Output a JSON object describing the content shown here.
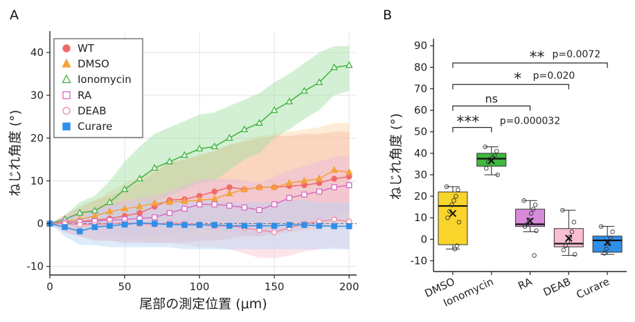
{
  "chart_data": [
    {
      "panel_label": "A",
      "type": "line",
      "xlabel": "尾部の測定位置 (μm)",
      "ylabel": "ねじれ角度 (°)",
      "xlim": [
        0,
        205
      ],
      "ylim": [
        -12,
        45
      ],
      "xticks": [
        0,
        50,
        100,
        150,
        200
      ],
      "yticks": [
        -10,
        0,
        10,
        20,
        30,
        40
      ],
      "grid": true,
      "zero_dashed_line": true,
      "legend_position": "top-left",
      "series": [
        {
          "name": "WT",
          "color": "#f06a6a",
          "marker": "circle-filled",
          "x": [
            0,
            10,
            20,
            30,
            40,
            50,
            60,
            70,
            80,
            90,
            100,
            110,
            120,
            130,
            140,
            150,
            160,
            170,
            180,
            190,
            200
          ],
          "y": [
            0,
            0.2,
            0.5,
            0.8,
            1.2,
            1.8,
            2.5,
            4.0,
            5.5,
            5.7,
            6.5,
            7.5,
            8.5,
            8.0,
            8.5,
            8.5,
            8.8,
            9.0,
            9.5,
            10.5,
            11.0
          ],
          "band_lower": [
            0,
            -2,
            -3,
            -4,
            -4,
            -4.5,
            -4.5,
            -4.5,
            -4.5,
            -4.5,
            -4,
            -4,
            -3.5,
            -3,
            -3,
            -2.5,
            -2,
            -1.5,
            -1,
            0,
            0.5
          ],
          "band_upper": [
            0,
            2,
            4,
            5.5,
            6.5,
            8,
            9.5,
            12,
            14.5,
            15,
            16,
            17,
            18.5,
            19,
            20,
            20.5,
            20.5,
            21,
            21,
            21.5,
            21.5
          ],
          "band_color": "#f4a3a3"
        },
        {
          "name": "DMSO",
          "color": "#f4a23a",
          "marker": "triangle-filled",
          "x": [
            0,
            10,
            20,
            30,
            40,
            50,
            60,
            70,
            80,
            90,
            100,
            110,
            120,
            130,
            140,
            150,
            160,
            170,
            180,
            190,
            200
          ],
          "y": [
            0,
            0.5,
            1.0,
            1.8,
            2.8,
            3.5,
            4.0,
            4.8,
            5.0,
            5.2,
            5.5,
            5.8,
            7.0,
            8.0,
            8.5,
            8.5,
            9.5,
            10.0,
            10.5,
            12.5,
            12.0
          ],
          "band_lower": [
            0,
            -1,
            -1.5,
            -2,
            -2.5,
            -3,
            -3.5,
            -3.5,
            -3.5,
            -3,
            -3,
            -2.5,
            -2,
            -2,
            -1.5,
            -1.5,
            -1,
            -1,
            -0.5,
            0,
            0
          ],
          "band_upper": [
            0,
            2,
            3.5,
            5.5,
            7.5,
            9.5,
            11,
            12.5,
            14,
            15,
            16,
            17,
            18.5,
            19.5,
            20.5,
            21,
            21.5,
            22,
            22.5,
            23.5,
            23.5
          ],
          "band_color": "#fbd5a3"
        },
        {
          "name": "Ionomycin",
          "color": "#45b545",
          "marker": "triangle-open",
          "x": [
            0,
            10,
            20,
            30,
            40,
            50,
            60,
            70,
            80,
            90,
            100,
            110,
            120,
            130,
            140,
            150,
            160,
            170,
            180,
            190,
            200
          ],
          "y": [
            0,
            1.0,
            2.5,
            3.0,
            5.0,
            8.0,
            10.5,
            13.0,
            14.5,
            16.0,
            17.5,
            18.0,
            20.0,
            22.0,
            23.5,
            26.5,
            28.5,
            31.0,
            33.0,
            36.5,
            37.0
          ],
          "band_lower": [
            0,
            -0.5,
            -0.5,
            -0.5,
            0,
            1.5,
            3,
            5,
            6.5,
            8,
            9.5,
            10,
            12.5,
            15,
            16.5,
            20,
            22,
            24.5,
            26.5,
            30,
            31
          ],
          "band_upper": [
            0,
            2,
            5,
            6.5,
            10,
            14.5,
            18,
            21,
            22.5,
            24,
            25.5,
            26,
            27.5,
            29,
            30.5,
            33,
            35,
            37.5,
            40,
            41.5,
            41.5
          ],
          "band_color": "#9fdd9f"
        },
        {
          "name": "RA",
          "color": "#d86ec4",
          "marker": "square-open",
          "x": [
            0,
            10,
            20,
            30,
            40,
            50,
            60,
            70,
            80,
            90,
            100,
            110,
            120,
            130,
            140,
            150,
            160,
            170,
            180,
            190,
            200
          ],
          "y": [
            0,
            0.3,
            0.4,
            0.6,
            0.8,
            1.0,
            1.2,
            1.5,
            2.5,
            3.5,
            4.5,
            4.5,
            4.2,
            3.8,
            3.2,
            4.5,
            6.0,
            6.8,
            7.5,
            8.5,
            9.0
          ],
          "band_lower": [
            0,
            -1,
            -1.5,
            -2,
            -2.5,
            -3,
            -3,
            -3,
            -2.5,
            -2,
            -1.5,
            -1.5,
            -2,
            -2.5,
            -3,
            -2,
            -1,
            0,
            1,
            2,
            2.5
          ],
          "band_upper": [
            0,
            1.5,
            2.5,
            3.5,
            4.5,
            5.5,
            6,
            6.5,
            7.5,
            9,
            10.5,
            10.5,
            10.5,
            10,
            9.5,
            11,
            12.5,
            13.5,
            14.5,
            15.5,
            16
          ],
          "band_color": "#eab8e1"
        },
        {
          "name": "DEAB",
          "color": "#f48aa8",
          "marker": "circle-open",
          "x": [
            0,
            10,
            20,
            30,
            40,
            50,
            60,
            70,
            80,
            90,
            100,
            110,
            120,
            130,
            140,
            150,
            160,
            170,
            180,
            190,
            200
          ],
          "y": [
            0,
            0,
            -0.2,
            -0.3,
            0,
            0.2,
            0,
            -0.2,
            0.2,
            0,
            -0.2,
            -0.5,
            -0.5,
            -1.0,
            -1.5,
            -2.0,
            -1.0,
            0,
            0.5,
            1.0,
            0.5
          ],
          "band_lower": [
            0,
            -2,
            -3,
            -3.5,
            -4,
            -4,
            -4,
            -4.5,
            -4.5,
            -5,
            -5.5,
            -5.5,
            -6,
            -7,
            -8,
            -8,
            -7.5,
            -6.5,
            -6,
            -5.5,
            -6
          ],
          "band_upper": [
            0,
            2,
            3,
            3.5,
            4,
            4.5,
            4.5,
            4.5,
            5,
            5,
            5,
            4.5,
            5,
            5,
            4.5,
            4,
            5,
            6,
            7,
            7.5,
            7
          ],
          "band_color": "#f8c3d2"
        },
        {
          "name": "Curare",
          "color": "#2f8fe8",
          "marker": "square-filled",
          "x": [
            0,
            10,
            20,
            30,
            40,
            50,
            60,
            70,
            80,
            90,
            100,
            110,
            120,
            130,
            140,
            150,
            160,
            170,
            180,
            190,
            200
          ],
          "y": [
            0,
            -0.8,
            -1.8,
            -0.8,
            -0.5,
            -0.2,
            0.2,
            0.0,
            -0.2,
            -0.3,
            -0.3,
            -0.3,
            -0.5,
            -0.5,
            -0.5,
            -0.5,
            -0.3,
            -0.3,
            -0.5,
            -0.6,
            -0.6
          ],
          "band_lower": [
            0,
            -3,
            -5,
            -5,
            -5.5,
            -5.5,
            -5.5,
            -5.5,
            -5.5,
            -6,
            -6,
            -6,
            -6,
            -6,
            -6,
            -6,
            -6,
            -6,
            -6,
            -6,
            -6
          ],
          "band_upper": [
            0,
            1.5,
            1.5,
            3,
            4,
            4.5,
            5,
            5.5,
            5.5,
            5.5,
            5.5,
            5.5,
            5,
            5,
            5,
            5,
            5.5,
            5.5,
            5,
            5,
            5
          ],
          "band_color": "#b5d5f5"
        }
      ]
    },
    {
      "panel_label": "B",
      "type": "box",
      "ylabel": "ねじれ角度 (°)",
      "ylim": [
        -15,
        92
      ],
      "yticks": [
        -10,
        0,
        10,
        20,
        30,
        40,
        50,
        60,
        70,
        80,
        90
      ],
      "grid": false,
      "groups": [
        {
          "name": "DMSO",
          "color": "#f9d42a",
          "q1": -2.5,
          "median": 15.5,
          "q3": 22.0,
          "whisker_low": -4.5,
          "whisker_high": 24.5,
          "mean": 12.0,
          "points": [
            24.5,
            23.0,
            20.0,
            18.0,
            16.0,
            13.0,
            10.0,
            8.0,
            -3.0,
            -4.5
          ]
        },
        {
          "name": "Ionomycin",
          "color": "#3fb93f",
          "q1": 34.0,
          "median": 37.5,
          "q3": 40.0,
          "whisker_low": 30.0,
          "whisker_high": 43.0,
          "mean": 36.5,
          "points": [
            43.0,
            41.0,
            39.0,
            38.0,
            37.0,
            36.0,
            33.0,
            30.0
          ]
        },
        {
          "name": "RA",
          "color": "#d68bd9",
          "q1": 6.0,
          "median": 7.0,
          "q3": 14.0,
          "whisker_low": 3.5,
          "whisker_high": 18.0,
          "mean": 8.5,
          "points": [
            18.0,
            16.0,
            14.0,
            12.0,
            9.0,
            7.0,
            6.0,
            4.0,
            -7.5
          ]
        },
        {
          "name": "DEAB",
          "color": "#f7bfd0",
          "q1": -3.5,
          "median": -2.0,
          "q3": 5.0,
          "whisker_low": -7.5,
          "whisker_high": 13.5,
          "mean": 0.5,
          "points": [
            13.5,
            8.0,
            3.5,
            1.0,
            -1.0,
            -3.0,
            -5.0,
            -7.0
          ]
        },
        {
          "name": "Curare",
          "color": "#2f8fe8",
          "q1": -6.0,
          "median": -0.5,
          "q3": 1.5,
          "whisker_low": -7.0,
          "whisker_high": 6.0,
          "mean": -1.5,
          "points": [
            6.0,
            3.5,
            0.5,
            -2.0,
            -4.5,
            -6.5
          ]
        }
      ],
      "significance": [
        {
          "from": 0,
          "to": 1,
          "y": 52,
          "stars": "***",
          "p_text": "p=0.000032"
        },
        {
          "from": 0,
          "to": 2,
          "y": 62,
          "stars": "ns",
          "p_text": ""
        },
        {
          "from": 0,
          "to": 3,
          "y": 72,
          "stars": "*",
          "p_text": "p=0.020"
        },
        {
          "from": 0,
          "to": 4,
          "y": 82,
          "stars": "**",
          "p_text": "p=0.0072"
        }
      ]
    }
  ]
}
